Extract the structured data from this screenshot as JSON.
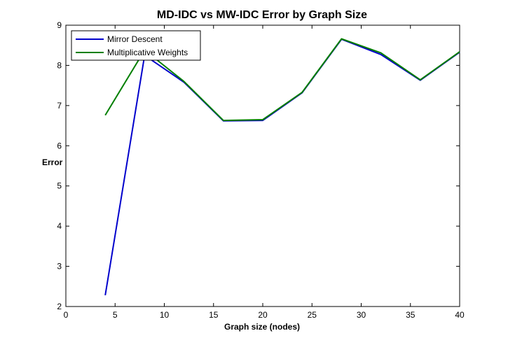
{
  "chart_data": {
    "type": "line",
    "title": "MD-IDC vs MW-IDC Error by Graph Size",
    "xlabel": "Graph size (nodes)",
    "ylabel": "Error",
    "xlim": [
      0,
      40
    ],
    "ylim": [
      2,
      9
    ],
    "xticks": [
      0,
      5,
      10,
      15,
      20,
      25,
      30,
      35,
      40
    ],
    "yticks": [
      2,
      3,
      4,
      5,
      6,
      7,
      8,
      9
    ],
    "grid": false,
    "legend_position": "top-left",
    "x": [
      4,
      8,
      12,
      16,
      20,
      24,
      28,
      32,
      36,
      40
    ],
    "series": [
      {
        "name": "Mirror Descent",
        "color": "#0000cc",
        "values": [
          2.28,
          8.25,
          7.58,
          6.62,
          6.63,
          7.32,
          8.65,
          8.27,
          7.63,
          8.33
        ]
      },
      {
        "name": "Multiplicative Weights",
        "color": "#007f00",
        "values": [
          6.76,
          8.38,
          7.6,
          6.63,
          6.65,
          7.33,
          8.66,
          8.31,
          7.64,
          8.34
        ]
      }
    ]
  }
}
